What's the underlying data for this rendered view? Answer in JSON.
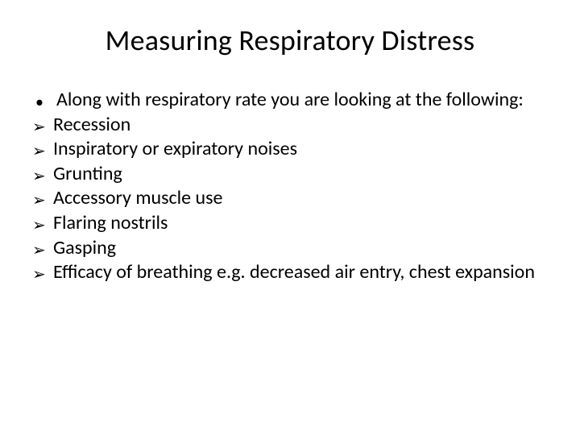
{
  "title": "Measuring Respiratory Distress",
  "intro": "Along with respiratory rate you are looking at the following:",
  "items": [
    "Recession",
    "Inspiratory or expiratory noises",
    "Grunting",
    "Accessory muscle use",
    "Flaring nostrils",
    "Gasping",
    "Efficacy of breathing e.g. decreased air entry, chest expansion"
  ],
  "style": {
    "background_color": "#ffffff",
    "text_color": "#000000",
    "title_fontsize": 36,
    "body_fontsize": 24,
    "font_family": "Calibri",
    "bullet_dot_char": "•",
    "bullet_arrow_char": "➢",
    "slide_width": 720,
    "slide_height": 540
  }
}
